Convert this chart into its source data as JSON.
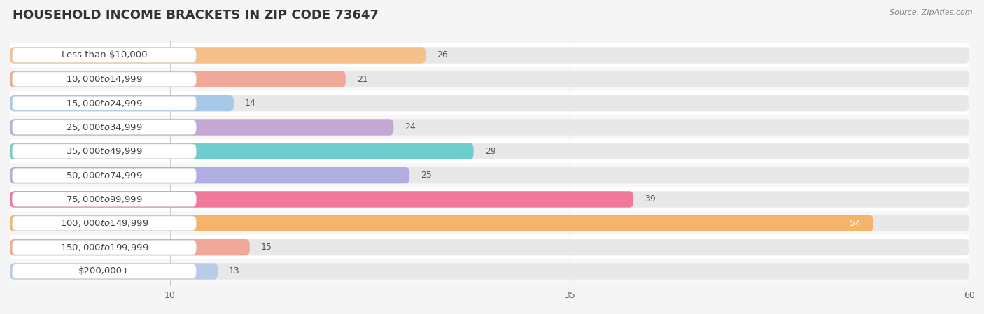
{
  "title": "HOUSEHOLD INCOME BRACKETS IN ZIP CODE 73647",
  "source": "Source: ZipAtlas.com",
  "categories": [
    "Less than $10,000",
    "$10,000 to $14,999",
    "$15,000 to $24,999",
    "$25,000 to $34,999",
    "$35,000 to $49,999",
    "$50,000 to $74,999",
    "$75,000 to $99,999",
    "$100,000 to $149,999",
    "$150,000 to $199,999",
    "$200,000+"
  ],
  "values": [
    26,
    21,
    14,
    24,
    29,
    25,
    39,
    54,
    15,
    13
  ],
  "bar_colors": [
    "#f5c08a",
    "#f0a898",
    "#a8c8e8",
    "#c4a8d4",
    "#6ecece",
    "#b0aee0",
    "#f07898",
    "#f5b468",
    "#f0a898",
    "#b8cce8"
  ],
  "row_colors": [
    "#ffffff",
    "#f0f0f0"
  ],
  "xlim": [
    0,
    60
  ],
  "xticks": [
    10,
    35,
    60
  ],
  "background_color": "#f0f0f0",
  "bar_background_color": "#e0e0e0",
  "label_bg_color": "#ffffff",
  "title_fontsize": 13,
  "label_fontsize": 9.5,
  "value_fontsize": 9,
  "tick_fontsize": 9
}
